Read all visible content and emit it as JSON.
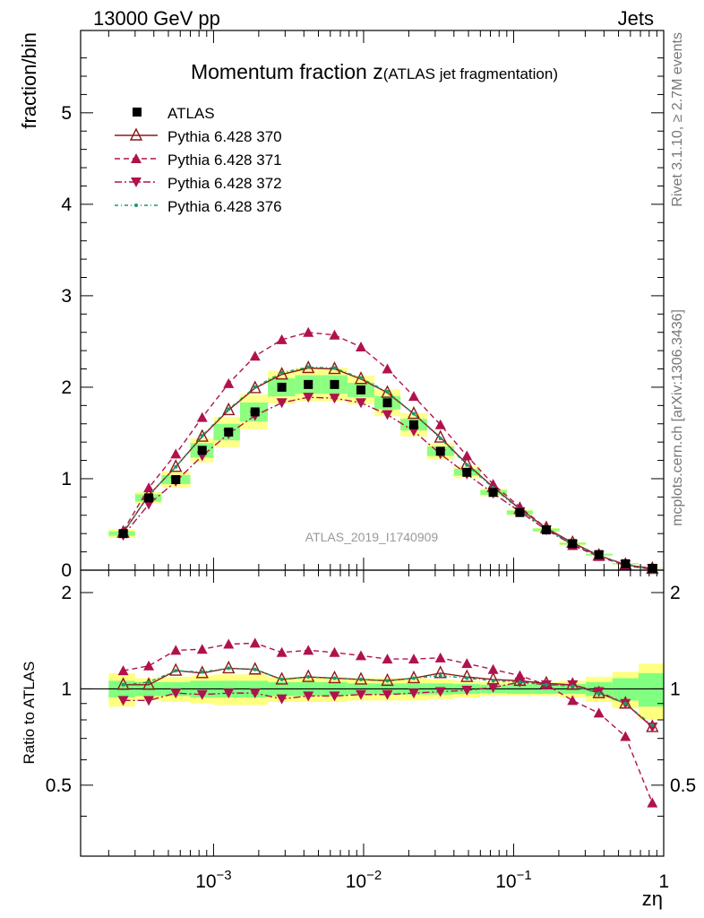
{
  "header": {
    "left": "13000 GeV pp",
    "right": "Jets"
  },
  "side_labels": {
    "rivet": "Rivet 3.1.10, ≥ 2.7M events",
    "mcplots": "mcplots.cern.ch [arXiv:1306.3436]"
  },
  "chart_data": {
    "type": "line",
    "title_main": "Momentum fraction z",
    "title_sub": "(ATLAS jet fragmentation)",
    "watermark": "ATLAS_2019_I1740909",
    "xlabel": "zη",
    "ylabel": "fraction/bin",
    "ratio_ylabel": "Ratio to ATLAS",
    "x_scale": "log",
    "xlim": [
      0.00013,
      1.0
    ],
    "ylim": [
      0,
      5.9
    ],
    "ratio_ylim": [
      0.3,
      2.35
    ],
    "x_ticks": [
      {
        "value": 0.001,
        "base": "10",
        "exp": "−3"
      },
      {
        "value": 0.01,
        "base": "10",
        "exp": "−2"
      },
      {
        "value": 0.1,
        "base": "10",
        "exp": "−1"
      },
      {
        "value": 1,
        "base": "1",
        "exp": ""
      }
    ],
    "y_ticks": [
      "0",
      "1",
      "2",
      "3",
      "4",
      "5"
    ],
    "ratio_y_ticks": [
      {
        "value": 0.5,
        "label": "0.5"
      },
      {
        "value": 1,
        "label": "1"
      },
      {
        "value": 2,
        "label": "2"
      }
    ],
    "legend_position": "top-left",
    "x": [
      0.00025,
      0.00037,
      0.00056,
      0.00084,
      0.00126,
      0.00189,
      0.00285,
      0.00428,
      0.0064,
      0.0096,
      0.0144,
      0.0216,
      0.0325,
      0.0488,
      0.073,
      0.11,
      0.165,
      0.247,
      0.37,
      0.556,
      0.84
    ],
    "x_edges": [
      0.0002,
      0.0003,
      0.00045,
      0.0007,
      0.001,
      0.0015,
      0.0023,
      0.0035,
      0.0052,
      0.0078,
      0.0118,
      0.0176,
      0.0265,
      0.04,
      0.06,
      0.09,
      0.134,
      0.202,
      0.303,
      0.455,
      0.68,
      1.0
    ],
    "band_inner": [
      0.06,
      0.05,
      0.05,
      0.06,
      0.06,
      0.06,
      0.05,
      0.05,
      0.05,
      0.04,
      0.04,
      0.04,
      0.04,
      0.035,
      0.03,
      0.035,
      0.035,
      0.035,
      0.05,
      0.08,
      0.12
    ],
    "band_outer": [
      0.12,
      0.08,
      0.09,
      0.1,
      0.11,
      0.11,
      0.09,
      0.09,
      0.09,
      0.08,
      0.08,
      0.08,
      0.07,
      0.06,
      0.05,
      0.05,
      0.05,
      0.06,
      0.09,
      0.13,
      0.2
    ],
    "series": [
      {
        "name": "ATLAS",
        "color": "#000000",
        "marker": "square",
        "values": [
          0.4,
          0.79,
          0.99,
          1.31,
          1.51,
          1.73,
          2.0,
          2.03,
          2.03,
          1.97,
          1.83,
          1.59,
          1.3,
          1.07,
          0.85,
          0.63,
          0.44,
          0.29,
          0.17,
          0.07,
          0.02
        ]
      },
      {
        "name": "Pythia 6.428 370",
        "color": "#8b1a1a",
        "marker": "triangle-up-open",
        "dash": "",
        "values": [
          0.41,
          0.82,
          1.13,
          1.46,
          1.75,
          1.99,
          2.14,
          2.21,
          2.2,
          2.09,
          1.94,
          1.71,
          1.45,
          1.16,
          0.91,
          0.67,
          0.46,
          0.3,
          0.16,
          0.06,
          0.015
        ],
        "ratio": [
          1.03,
          1.03,
          1.14,
          1.12,
          1.16,
          1.15,
          1.07,
          1.09,
          1.08,
          1.07,
          1.06,
          1.08,
          1.12,
          1.09,
          1.07,
          1.06,
          1.04,
          1.03,
          0.97,
          0.9,
          0.76
        ]
      },
      {
        "name": "Pythia 6.428 371",
        "color": "#b0124e",
        "marker": "triangle-up-filled",
        "dash": "6,4",
        "values": [
          0.43,
          0.9,
          1.27,
          1.67,
          2.04,
          2.34,
          2.52,
          2.6,
          2.57,
          2.44,
          2.2,
          1.9,
          1.59,
          1.25,
          0.94,
          0.69,
          0.46,
          0.27,
          0.15,
          0.05,
          0.009
        ],
        "ratio": [
          1.14,
          1.18,
          1.32,
          1.33,
          1.38,
          1.39,
          1.3,
          1.32,
          1.3,
          1.27,
          1.24,
          1.24,
          1.25,
          1.2,
          1.15,
          1.1,
          1.03,
          0.92,
          0.84,
          0.71,
          0.44
        ]
      },
      {
        "name": "Pythia 6.428 372",
        "color": "#b0124e",
        "marker": "triangle-down-filled",
        "dash": "8,3,2,3",
        "values": [
          0.38,
          0.72,
          0.97,
          1.25,
          1.49,
          1.69,
          1.83,
          1.89,
          1.88,
          1.83,
          1.7,
          1.52,
          1.27,
          1.05,
          0.84,
          0.64,
          0.44,
          0.28,
          0.16,
          0.06,
          0.02
        ],
        "ratio": [
          0.92,
          0.92,
          0.97,
          0.96,
          0.97,
          0.97,
          0.93,
          0.95,
          0.95,
          0.96,
          0.96,
          0.97,
          0.98,
          0.99,
          1.01,
          1.05,
          1.03,
          1.03,
          0.98,
          0.9,
          0.76
        ]
      },
      {
        "name": "Pythia 6.428 376",
        "color": "#1a9a6a",
        "marker": "dot",
        "dash": "4,3,1,3",
        "values": [
          0.41,
          0.82,
          1.13,
          1.47,
          1.76,
          2.0,
          2.16,
          2.22,
          2.21,
          2.1,
          1.95,
          1.71,
          1.44,
          1.15,
          0.9,
          0.66,
          0.45,
          0.29,
          0.16,
          0.06,
          0.015
        ],
        "ratio": [
          1.03,
          1.05,
          1.14,
          1.13,
          1.16,
          1.15,
          1.07,
          1.09,
          1.08,
          1.07,
          1.06,
          1.08,
          1.1,
          1.08,
          1.06,
          1.05,
          1.03,
          1.02,
          0.97,
          0.9,
          0.77
        ]
      }
    ]
  }
}
